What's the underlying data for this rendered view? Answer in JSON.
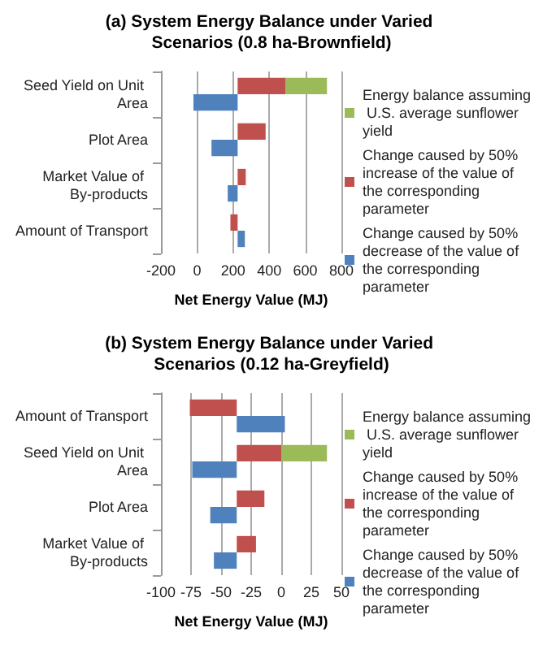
{
  "chart_data": [
    {
      "type": "bar",
      "orientation": "horizontal",
      "title": "(a) System Energy Balance under Varied Scenarios (0.8 ha-Brownfield)",
      "xlabel": "Net Energy Value (MJ)",
      "categories": [
        "Seed Yield on Unit Area",
        "Plot Area",
        "Market Value of By-products",
        "Amount of Transport"
      ],
      "series": [
        {
          "name": "Energy balance assuming U.S. average sunflower yield",
          "color": "#9bbb59",
          "base": [
            490,
            null,
            null,
            null
          ],
          "values": [
            230,
            null,
            null,
            null
          ]
        },
        {
          "name": "Change caused by 50% increase of the value of the corresponding parameter",
          "color": "#c0504d",
          "base": [
            225,
            225,
            225,
            225
          ],
          "values": [
            265,
            155,
            45,
            -40
          ]
        },
        {
          "name": "Change caused by 50% decrease of the value of the corresponding parameter",
          "color": "#4f81bd",
          "base": [
            225,
            225,
            225,
            225
          ],
          "values": [
            -245,
            -145,
            -55,
            40
          ]
        }
      ],
      "xlim": [
        -200,
        800
      ],
      "xticks": [
        -200,
        0,
        200,
        400,
        600,
        800
      ],
      "grid": "x",
      "legend": "right"
    },
    {
      "type": "bar",
      "orientation": "horizontal",
      "title": "(b) System Energy Balance under Varied Scenarios (0.12 ha-Greyfield)",
      "xlabel": "Net Energy Value (MJ)",
      "categories": [
        "Amount of Transport",
        "Seed Yield on Unit Area",
        "Plot Area",
        "Market Value of By-products"
      ],
      "series": [
        {
          "name": "Energy balance assuming U.S. average sunflower yield",
          "color": "#9bbb59",
          "base": [
            null,
            0,
            null,
            null
          ],
          "values": [
            null,
            38,
            null,
            null
          ]
        },
        {
          "name": "Change caused by 50% increase of the value of the corresponding parameter",
          "color": "#c0504d",
          "base": [
            -37,
            -37,
            -37,
            -37
          ],
          "values": [
            -39,
            37,
            23,
            16
          ]
        },
        {
          "name": "Change caused by 50% decrease of the value of the corresponding parameter",
          "color": "#4f81bd",
          "base": [
            -37,
            -37,
            -37,
            -37
          ],
          "values": [
            40,
            -37,
            -22,
            -19
          ]
        }
      ],
      "xlim": [
        -100,
        50
      ],
      "xticks": [
        -100,
        -75,
        -50,
        -25,
        0,
        25,
        50
      ],
      "grid": "x",
      "legend": "right"
    }
  ]
}
